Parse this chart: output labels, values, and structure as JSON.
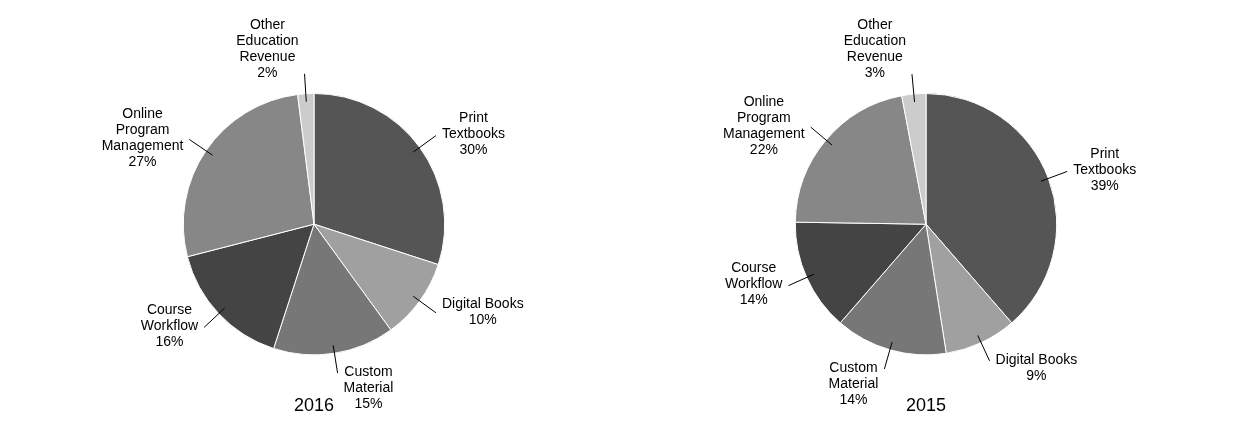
{
  "chart_data": [
    {
      "type": "pie",
      "title": "2016",
      "categories": [
        "Print Textbooks",
        "Digital Books",
        "Custom Material",
        "Course Workflow",
        "Online Program Management",
        "Other Education Revenue"
      ],
      "values": [
        30,
        10,
        15,
        16,
        27,
        2
      ],
      "value_labels": [
        "30%",
        "10%",
        "15%",
        "16%",
        "27%",
        "2%"
      ],
      "colors": [
        "#555555",
        "#a0a0a0",
        "#777777",
        "#444444",
        "#878787",
        "#cccccc"
      ],
      "legend": false
    },
    {
      "type": "pie",
      "title": "2015",
      "categories": [
        "Print Textbooks",
        "Digital Books",
        "Custom Material",
        "Course Workflow",
        "Online Program Management",
        "Other Education Revenue"
      ],
      "values": [
        39,
        9,
        14,
        14,
        22,
        3
      ],
      "value_labels": [
        "39%",
        "9%",
        "14%",
        "14%",
        "22%",
        "3%"
      ],
      "colors": [
        "#555555",
        "#a0a0a0",
        "#777777",
        "#444444",
        "#878787",
        "#cccccc"
      ],
      "legend": false
    }
  ]
}
